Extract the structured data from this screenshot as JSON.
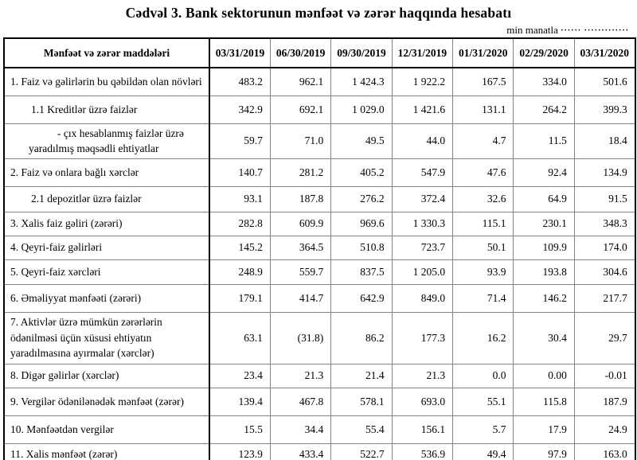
{
  "title": "Cədvəl 3. Bank sektorunun mənfəət və zərər haqqında hesabatı",
  "unit_note": "min manatla",
  "unit_dots": "······ ·············",
  "colors": {
    "text": "#000000",
    "outer_border": "#000000",
    "inner_border": "#828282",
    "background": "#ffffff"
  },
  "table": {
    "header": [
      "Mənfəət və zərər maddələri",
      "03/31/2019",
      "06/30/2019",
      "09/30/2019",
      "12/31/2019",
      "01/31/2020",
      "02/29/2020",
      "03/31/2020"
    ],
    "rows": [
      {
        "label": "1. Faiz və gəlirlərin bu qəbildən olan növləri",
        "indent": 0,
        "values": [
          "483.2",
          "962.1",
          "1 424.3",
          "1 922.2",
          "167.5",
          "334.0",
          "501.6"
        ]
      },
      {
        "label": "1.1 Kreditlər üzrə faizlər",
        "indent": 1,
        "values": [
          "342.9",
          "692.1",
          "1 029.0",
          "1 421.6",
          "131.1",
          "264.2",
          "399.3"
        ]
      },
      {
        "label": "-  çıx hesablanmış faizlər üzrə\nyaradılmış məqsədli ehtiyatlar",
        "indent": 0,
        "twoline": true,
        "values": [
          "59.7",
          "71.0",
          "49.5",
          "44.0",
          "4.7",
          "11.5",
          "18.4"
        ]
      },
      {
        "label": "2. Faiz və onlara bağlı xərclər",
        "indent": 0,
        "values": [
          "140.7",
          "281.2",
          "405.2",
          "547.9",
          "47.6",
          "92.4",
          "134.9"
        ]
      },
      {
        "label": "2.1 depozitlər üzrə faizlər",
        "indent": 1,
        "values": [
          "93.1",
          "187.8",
          "276.2",
          "372.4",
          "32.6",
          "64.9",
          "91.5"
        ]
      },
      {
        "label": "3. Xalis faiz gəliri (zərəri)",
        "indent": 0,
        "values": [
          "282.8",
          "609.9",
          "969.6",
          "1 330.3",
          "115.1",
          "230.1",
          "348.3"
        ]
      },
      {
        "label": "4. Qeyri-faiz gəlirləri",
        "indent": 0,
        "values": [
          "145.2",
          "364.5",
          "510.8",
          "723.7",
          "50.1",
          "109.9",
          "174.0"
        ]
      },
      {
        "label": "5. Qeyri-faiz xərcləri",
        "indent": 0,
        "values": [
          "248.9",
          "559.7",
          "837.5",
          "1 205.0",
          "93.9",
          "193.8",
          "304.6"
        ]
      },
      {
        "label": "6. Əməliyyat mənfəəti (zərəri)",
        "indent": 0,
        "values": [
          "179.1",
          "414.7",
          "642.9",
          "849.0",
          "71.4",
          "146.2",
          "217.7"
        ]
      },
      {
        "label": "7. Aktivlər üzrə mümkün zərərlərin ödənilməsi üçün xüsusi ehtiyatın yaradılmasına ayırmalar (xərclər)",
        "indent": 0,
        "values": [
          "63.1",
          "(31.8)",
          "86.2",
          "177.3",
          "16.2",
          "30.4",
          "29.7"
        ]
      },
      {
        "label": "8. Digər gəlirlər (xərclər)",
        "indent": 0,
        "values": [
          "23.4",
          "21.3",
          "21.4",
          "21.3",
          "0.0",
          "0.00",
          "-0.01"
        ]
      },
      {
        "label": "9. Vergilər ödənilənədək mənfəət (zərər)",
        "indent": 0,
        "values": [
          "139.4",
          "467.8",
          "578.1",
          "693.0",
          "55.1",
          "115.8",
          "187.9"
        ]
      },
      {
        "label": "10. Mənfəətdən vergilər",
        "indent": 0,
        "values": [
          "15.5",
          "34.4",
          "55.4",
          "156.1",
          "5.7",
          "17.9",
          "24.9"
        ]
      },
      {
        "label": "11. Xalis mənfəət (zərər)",
        "indent": 0,
        "values": [
          "123.9",
          "433.4",
          "522.7",
          "536.9",
          "49.4",
          "97.9",
          "163.0"
        ]
      }
    ]
  }
}
